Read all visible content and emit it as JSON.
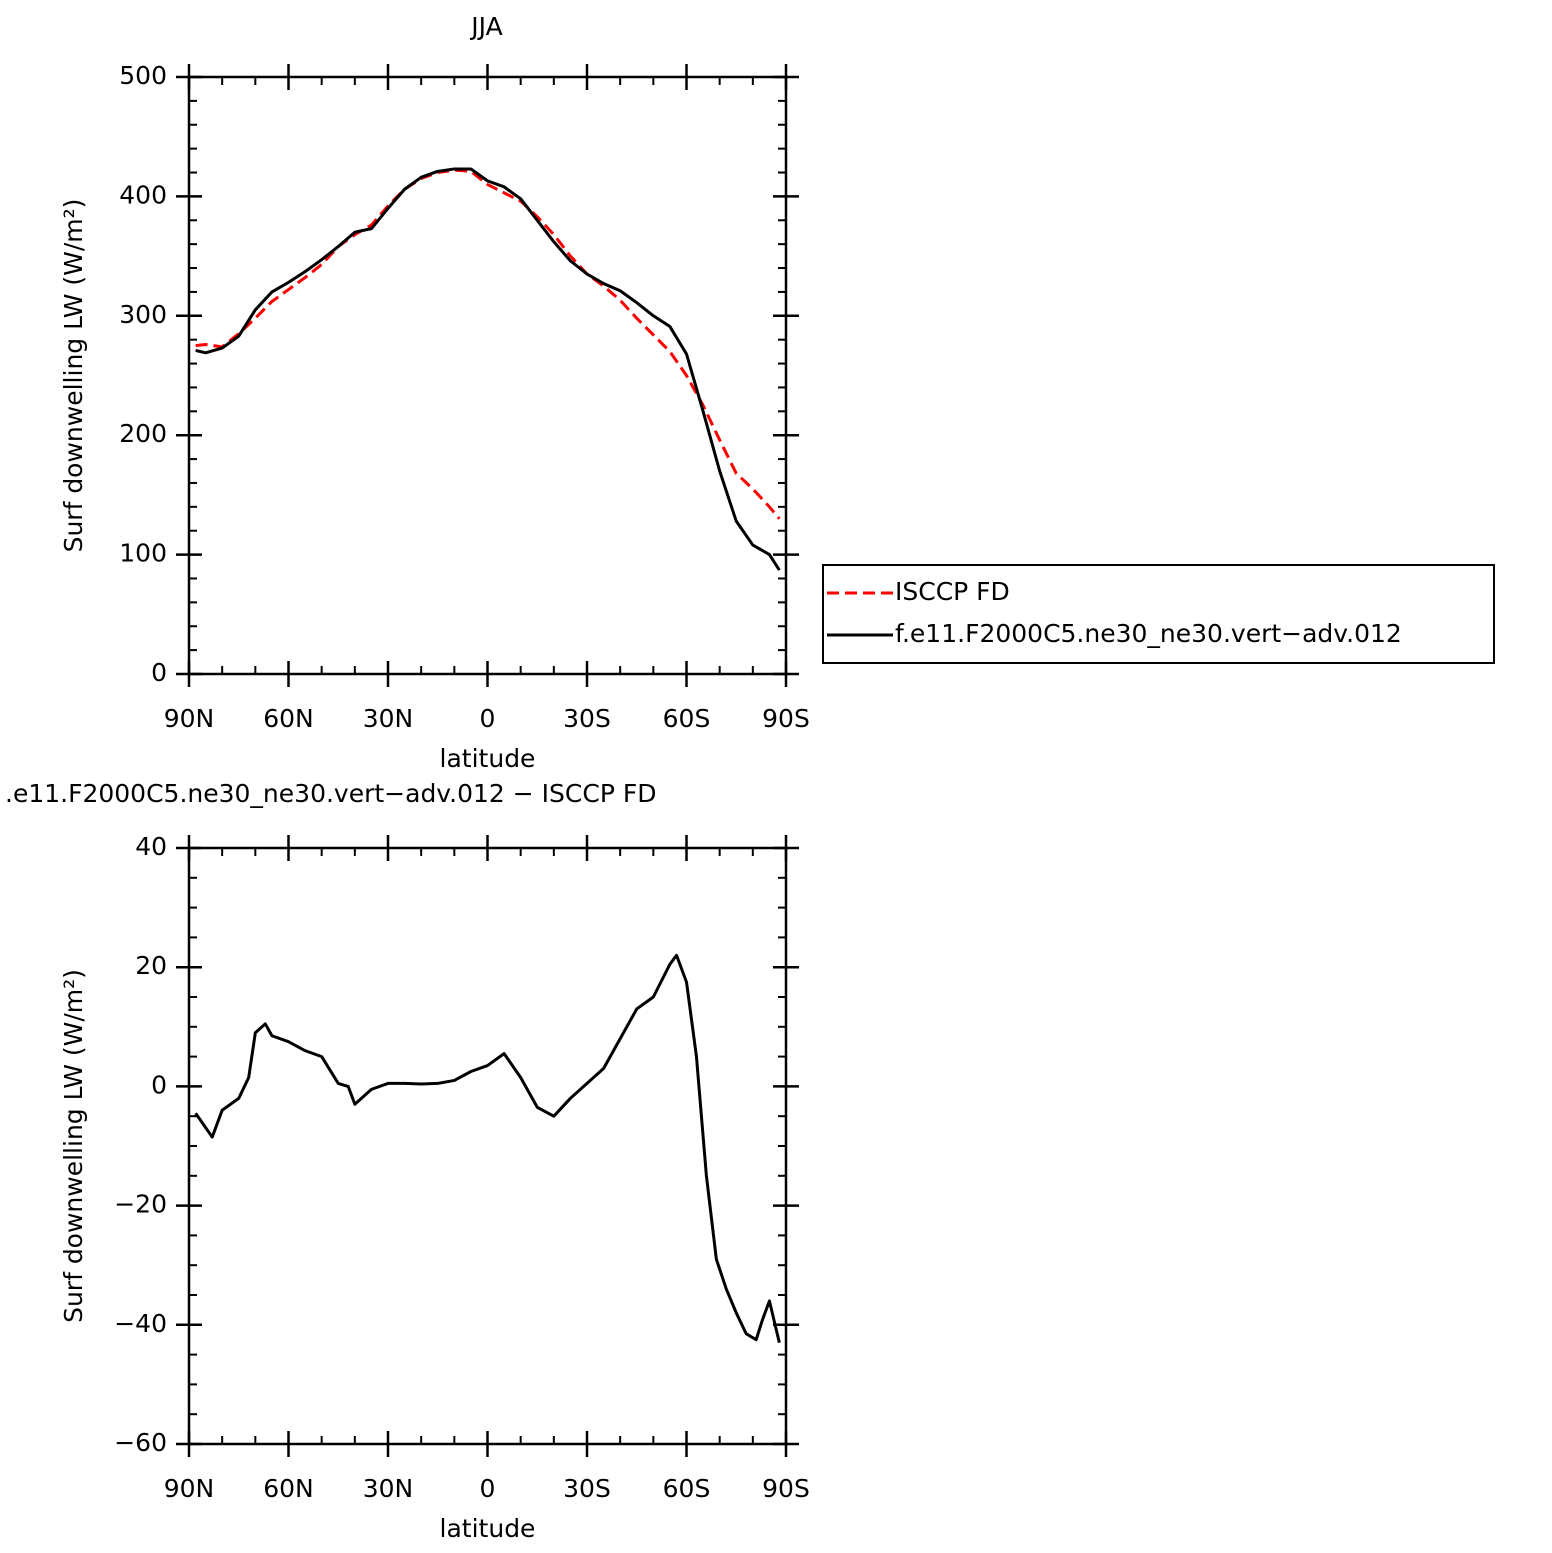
{
  "chart_data": [
    {
      "type": "line",
      "title": "JJA",
      "xlabel": "latitude",
      "ylabel": "Surf downwelling LW (W/m²)",
      "x": [
        88,
        85,
        80,
        75,
        70,
        65,
        60,
        55,
        50,
        45,
        40,
        35,
        30,
        25,
        20,
        15,
        10,
        5,
        0,
        -5,
        -10,
        -15,
        -20,
        -25,
        -30,
        -35,
        -40,
        -45,
        -50,
        -55,
        -60,
        -65,
        -70,
        -75,
        -80,
        -85,
        -88
      ],
      "series": [
        {
          "name": "ISCCP FD",
          "color": "#ff0000",
          "dash": true,
          "values": [
            275,
            276,
            274,
            285,
            298,
            312,
            322,
            332,
            343,
            358,
            368,
            376,
            392,
            406,
            415,
            420,
            422,
            421,
            410,
            403,
            396,
            383,
            368,
            350,
            335,
            325,
            313,
            298,
            284,
            270,
            250,
            225,
            196,
            168,
            155,
            140,
            130
          ]
        },
        {
          "name": "f.e11.F2000C5.ne30_ne30.vert−adv.012",
          "color": "#000000",
          "dash": false,
          "values": [
            271,
            269,
            273,
            283,
            305,
            320,
            328,
            337,
            347,
            358,
            370,
            373,
            390,
            406,
            416,
            421,
            423,
            423,
            413,
            408,
            398,
            380,
            362,
            346,
            335,
            327,
            321,
            311,
            300,
            291,
            268,
            220,
            170,
            128,
            108,
            100,
            87
          ]
        }
      ],
      "xlim": [
        90,
        -90
      ],
      "xticks": [
        {
          "value": 90,
          "label": "90N"
        },
        {
          "value": 60,
          "label": "60N"
        },
        {
          "value": 30,
          "label": "30N"
        },
        0,
        {
          "value": -30,
          "label": "30S"
        },
        {
          "value": -60,
          "label": "60S"
        },
        {
          "value": -90,
          "label": "90S"
        }
      ],
      "ylim": [
        0,
        500
      ],
      "yticks": [
        0,
        100,
        200,
        300,
        400,
        500
      ],
      "legend": "right"
    },
    {
      "type": "line",
      "title": ".e11.F2000C5.ne30_ne30.vert−adv.012 − ISCCP FD",
      "xlabel": "latitude",
      "ylabel": "Surf downwelling LW (W/m²)",
      "x": [
        88,
        83,
        80,
        75,
        72,
        70,
        67,
        65,
        60,
        55,
        50,
        45,
        42,
        40,
        35,
        30,
        25,
        20,
        15,
        10,
        5,
        0,
        -5,
        -10,
        -15,
        -20,
        -25,
        -30,
        -35,
        -40,
        -45,
        -50,
        -55,
        -57,
        -60,
        -63,
        -66,
        -69,
        -72,
        -75,
        -78,
        -81,
        -83,
        -85,
        -88
      ],
      "series": [
        {
          "name": null,
          "color": "#000000",
          "dash": false,
          "values": [
            -4.5,
            -8.5,
            -4,
            -2,
            1.5,
            9,
            10.5,
            8.5,
            7.5,
            6,
            5,
            0.5,
            0,
            -3,
            -0.5,
            0.5,
            0.5,
            0.4,
            0.5,
            1,
            2.5,
            3.5,
            5.5,
            1.5,
            -3.5,
            -5,
            -2,
            0.5,
            3,
            8,
            13,
            15,
            20.5,
            22,
            17.5,
            5,
            -15,
            -29,
            -34,
            -38,
            -41.5,
            -42.5,
            -39,
            -36,
            -43
          ]
        }
      ],
      "xlim": [
        90,
        -90
      ],
      "xticks": [
        {
          "value": 90,
          "label": "90N"
        },
        {
          "value": 60,
          "label": "60N"
        },
        {
          "value": 30,
          "label": "30N"
        },
        0,
        {
          "value": -30,
          "label": "30S"
        },
        {
          "value": -60,
          "label": "60S"
        },
        {
          "value": -90,
          "label": "90S"
        }
      ],
      "ylim": [
        -60,
        40
      ],
      "yticks": [
        {
          "value": -60,
          "label": "−60"
        },
        {
          "value": -40,
          "label": "−40"
        },
        {
          "value": -20,
          "label": "−20"
        },
        0,
        20,
        40
      ]
    }
  ]
}
